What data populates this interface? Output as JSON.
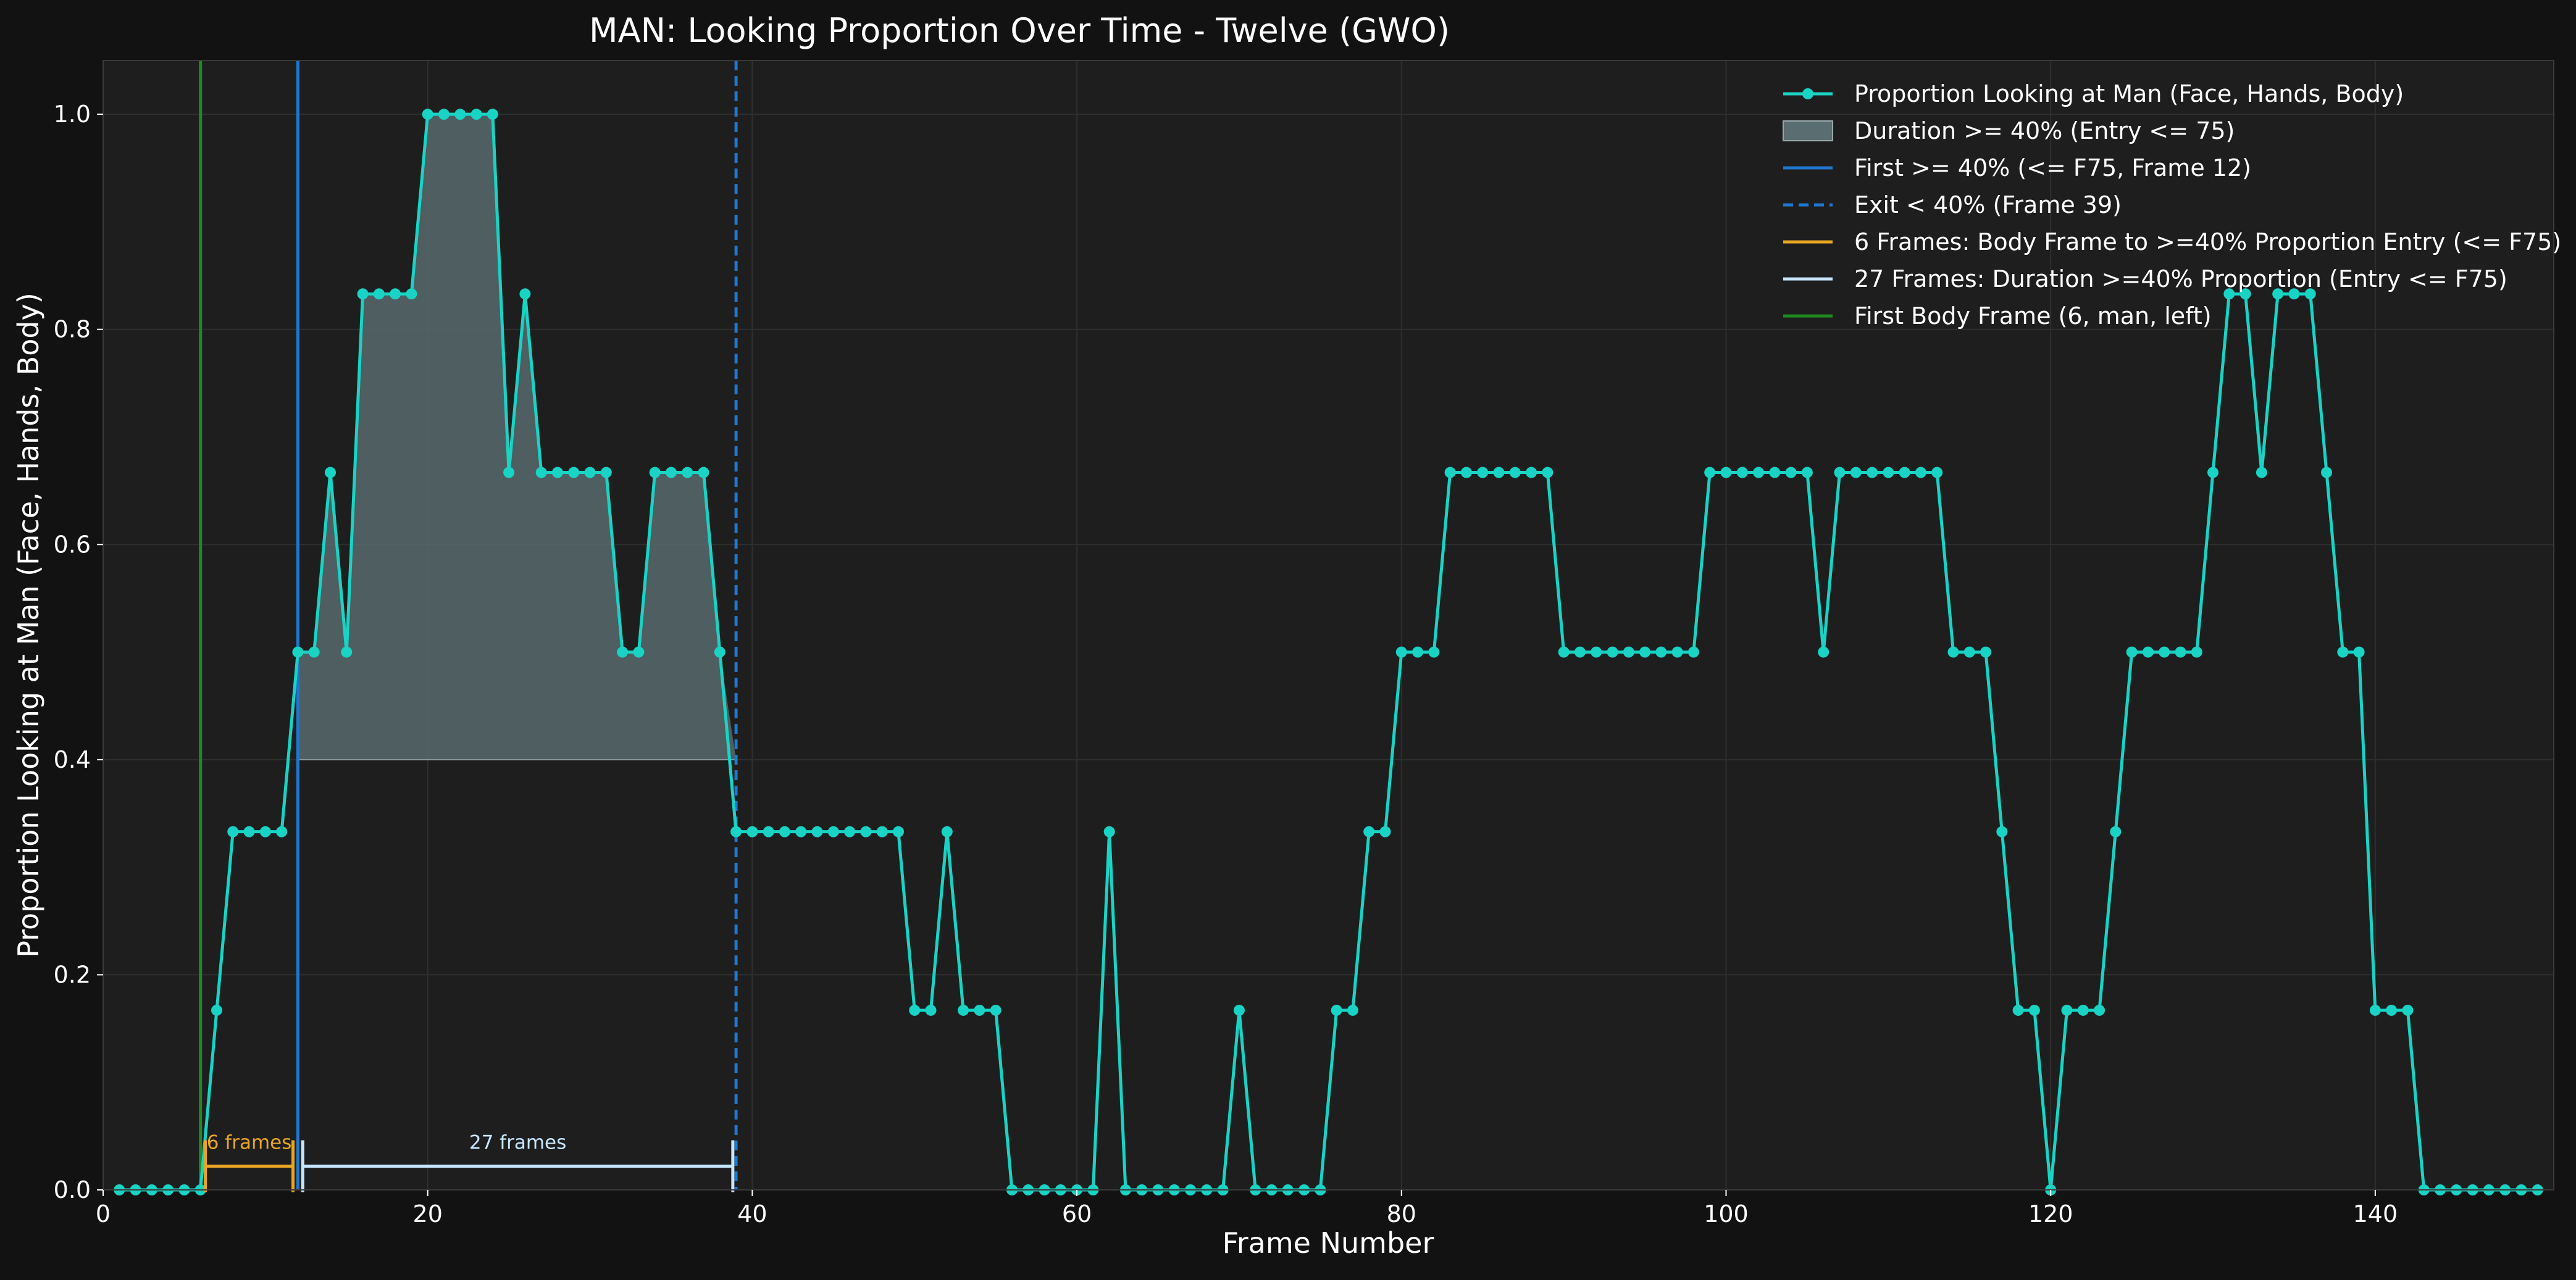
{
  "chart_data": {
    "type": "line",
    "title": "MAN: Looking Proportion Over Time - Twelve (GWO)",
    "xlabel": "Frame Number",
    "ylabel": "Proportion Looking at Man (Face, Hands, Body)",
    "xlim": [
      0,
      151
    ],
    "ylim": [
      0,
      1.05
    ],
    "xticks": [
      0,
      20,
      40,
      60,
      80,
      100,
      120,
      140
    ],
    "yticks": [
      0.0,
      0.2,
      0.4,
      0.6,
      0.8,
      1.0
    ],
    "xtick_labels": [
      "0",
      "20",
      "40",
      "60",
      "80",
      "100",
      "120",
      "140"
    ],
    "ytick_labels": [
      "0.0",
      "0.2",
      "0.4",
      "0.6",
      "0.8",
      "1.0"
    ],
    "grid": true,
    "legend_position": "top-right",
    "threshold": 0.4,
    "x": [
      1,
      2,
      3,
      4,
      5,
      6,
      7,
      8,
      9,
      10,
      11,
      12,
      13,
      14,
      15,
      16,
      17,
      18,
      19,
      20,
      21,
      22,
      23,
      24,
      25,
      26,
      27,
      28,
      29,
      30,
      31,
      32,
      33,
      34,
      35,
      36,
      37,
      38,
      39,
      40,
      41,
      42,
      43,
      44,
      45,
      46,
      47,
      48,
      49,
      50,
      51,
      52,
      53,
      54,
      55,
      56,
      57,
      58,
      59,
      60,
      61,
      62,
      63,
      64,
      65,
      66,
      67,
      68,
      69,
      70,
      71,
      72,
      73,
      74,
      75,
      76,
      77,
      78,
      79,
      80,
      81,
      82,
      83,
      84,
      85,
      86,
      87,
      88,
      89,
      90,
      91,
      92,
      93,
      94,
      95,
      96,
      97,
      98,
      99,
      100,
      101,
      102,
      103,
      104,
      105,
      106,
      107,
      108,
      109,
      110,
      111,
      112,
      113,
      114,
      115,
      116,
      117,
      118,
      119,
      120,
      121,
      122,
      123,
      124,
      125,
      126,
      127,
      128,
      129,
      130,
      131,
      132,
      133,
      134,
      135,
      136,
      137,
      138,
      139,
      140,
      141,
      142,
      143,
      144,
      145,
      146,
      147,
      148,
      149,
      150
    ],
    "series": [
      {
        "name": "Proportion Looking at Man (Face, Hands, Body)",
        "color": "#19d3c5",
        "values": [
          0,
          0,
          0,
          0,
          0,
          0,
          0.167,
          0.333,
          0.333,
          0.333,
          0.333,
          0.5,
          0.5,
          0.667,
          0.5,
          0.833,
          0.833,
          0.833,
          0.833,
          1,
          1,
          1,
          1,
          1,
          0.667,
          0.833,
          0.667,
          0.667,
          0.667,
          0.667,
          0.667,
          0.5,
          0.5,
          0.667,
          0.667,
          0.667,
          0.667,
          0.5,
          0.333,
          0.333,
          0.333,
          0.333,
          0.333,
          0.333,
          0.333,
          0.333,
          0.333,
          0.333,
          0.333,
          0.167,
          0.167,
          0.333,
          0.167,
          0.167,
          0.167,
          0,
          0,
          0,
          0,
          0,
          0,
          0.333,
          0,
          0,
          0,
          0,
          0,
          0,
          0,
          0.167,
          0,
          0,
          0,
          0,
          0,
          0.167,
          0.167,
          0.333,
          0.333,
          0.5,
          0.5,
          0.5,
          0.667,
          0.667,
          0.667,
          0.667,
          0.667,
          0.667,
          0.667,
          0.5,
          0.5,
          0.5,
          0.5,
          0.5,
          0.5,
          0.5,
          0.5,
          0.5,
          0.667,
          0.667,
          0.667,
          0.667,
          0.667,
          0.667,
          0.667,
          0.5,
          0.667,
          0.667,
          0.667,
          0.667,
          0.667,
          0.667,
          0.667,
          0.5,
          0.5,
          0.5,
          0.333,
          0.167,
          0.167,
          0,
          0.167,
          0.167,
          0.167,
          0.333,
          0.5,
          0.5,
          0.5,
          0.5,
          0.5,
          0.667,
          0.833,
          0.833,
          0.667,
          0.833,
          0.833,
          0.833,
          0.667,
          0.5,
          0.5,
          0.167,
          0.167,
          0.167,
          0,
          0,
          0,
          0,
          0,
          0,
          0,
          0
        ]
      }
    ],
    "shaded_region": {
      "name": "Duration >= 40% (Entry <= 75)",
      "x_start": 12,
      "x_end": 39,
      "y_base": 0.4,
      "color": "#5a6e72"
    },
    "vertical_lines": [
      {
        "name": "First >= 40% (<= F75, Frame 12)",
        "x": 12,
        "style": "solid",
        "color": "#1f77d0"
      },
      {
        "name": "Exit < 40% (Frame 39)",
        "x": 39,
        "style": "dashed",
        "color": "#1f77d0"
      },
      {
        "name": "First Body Frame (6, man, left)",
        "x": 6,
        "style": "solid",
        "color": "#1f8a1f"
      }
    ],
    "annotations": [
      {
        "name": "6 Frames: Body Frame to >=40% Proportion Entry (<= F75)",
        "label": "6 frames",
        "x_start": 6.3,
        "x_end": 11.7,
        "y": 0.022,
        "color": "#e8a623"
      },
      {
        "name": "27 Frames: Duration >=40% Proportion (Entry <= F75)",
        "label": "27 frames",
        "x_start": 12.3,
        "x_end": 38.8,
        "y": 0.022,
        "color": "#c7e6ff"
      }
    ],
    "legend": [
      {
        "label": "Proportion Looking at Man (Face, Hands, Body)",
        "kind": "line-marker",
        "color": "#19d3c5"
      },
      {
        "label": "Duration >= 40% (Entry <= 75)",
        "kind": "patch",
        "color": "#5a6e72"
      },
      {
        "label": "First >= 40% (<= F75, Frame 12)",
        "kind": "line",
        "color": "#1f77d0"
      },
      {
        "label": "Exit < 40% (Frame 39)",
        "kind": "dashed",
        "color": "#1f77d0"
      },
      {
        "label": "6 Frames: Body Frame to >=40% Proportion Entry (<= F75)",
        "kind": "line",
        "color": "#e8a623"
      },
      {
        "label": "27 Frames: Duration >=40% Proportion (Entry <= F75)",
        "kind": "line",
        "color": "#c7e6ff"
      },
      {
        "label": "First Body Frame (6, man, left)",
        "kind": "line",
        "color": "#1f8a1f"
      }
    ]
  }
}
